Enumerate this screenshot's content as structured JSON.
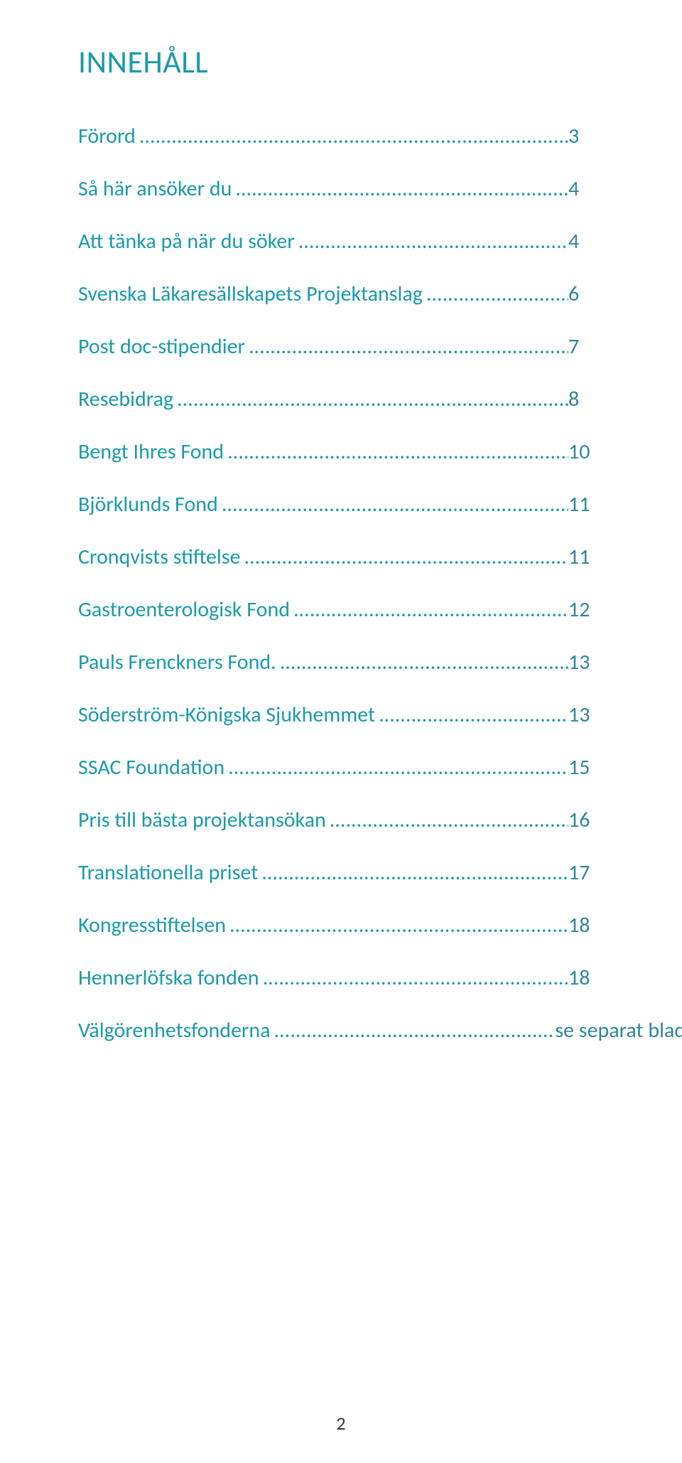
{
  "colors": {
    "accent": "#1b9aaa",
    "page_num_accent": "#31859c",
    "footer_text": "#333333",
    "background": "#ffffff"
  },
  "heading": "INNEHÅLL",
  "leader_char": "…",
  "leader_repeat": 40,
  "toc": [
    {
      "label": "Förord",
      "suffix": "..",
      "page": "3"
    },
    {
      "label": "Så här ansöker du",
      "suffix": "",
      "page": "4"
    },
    {
      "label": "Att tänka på när du söker",
      "suffix": "",
      "page": "4"
    },
    {
      "label": "Svenska Läkaresällskapets Projektanslag",
      "suffix": "..",
      "page": "6"
    },
    {
      "label": "Post doc-stipendier",
      "suffix": ".",
      "page": "7"
    },
    {
      "label": "Resebidrag",
      "suffix": "",
      "page": "8"
    },
    {
      "label": "Bengt Ihres Fond",
      "suffix": ".",
      "page": "10"
    },
    {
      "label": "Björklunds Fond",
      "suffix": "..",
      "page": "11"
    },
    {
      "label": "Cronqvists stiftelse",
      "suffix": "",
      "page": "11"
    },
    {
      "label": "Gastroenterologisk Fond",
      "suffix": "..",
      "page": "12"
    },
    {
      "label": "Pauls Frenckners Fond.",
      "suffix": "..",
      "page": "13"
    },
    {
      "label": "Söderström-Königska Sjukhemmet",
      "suffix": "..",
      "page": "13"
    },
    {
      "label": "SSAC Foundation",
      "suffix": ".",
      "page": "15"
    },
    {
      "label": "Pris till bästa projektansökan",
      "suffix": ".",
      "page": "16"
    },
    {
      "label": "Translationella priset",
      "suffix": "",
      "page": "17"
    },
    {
      "label": "Kongresstiftelsen",
      "suffix": "",
      "page": "18"
    },
    {
      "label": "Hennerlöfska fonden",
      "suffix": "..",
      "page": "18"
    },
    {
      "label": "Välgörenhetsfonderna",
      "suffix": "",
      "page": "se separat blad"
    }
  ],
  "footer_page_number": "2",
  "typography": {
    "heading_fontsize": 44,
    "body_fontsize": 30,
    "row_gap": 38
  }
}
